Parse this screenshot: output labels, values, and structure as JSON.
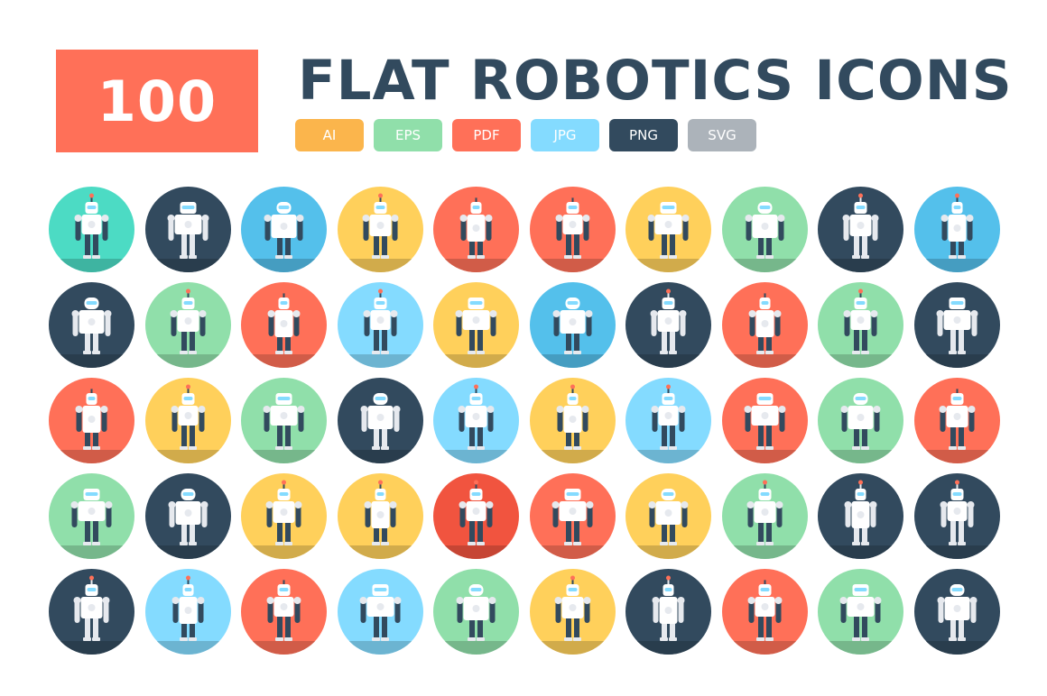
{
  "header": {
    "count": "100",
    "title": "FLAT ROBOTICS ICONS",
    "count_color": "#ff7058",
    "title_color": "#324a5e"
  },
  "formats": [
    {
      "label": "AI",
      "color": "#fbb54c"
    },
    {
      "label": "EPS",
      "color": "#90dfaa"
    },
    {
      "label": "PDF",
      "color": "#ff7058"
    },
    {
      "label": "JPG",
      "color": "#84dbff"
    },
    {
      "label": "PNG",
      "color": "#324a5e"
    },
    {
      "label": "SVG",
      "color": "#acb3ba"
    }
  ],
  "palette": {
    "teal": "#4cdbc4",
    "dark": "#324a5e",
    "blue": "#54c0eb",
    "yellow": "#ffd05b",
    "coral": "#ff7058",
    "green": "#90dfaa",
    "lightblue": "#84dbff",
    "red": "#f1543f"
  },
  "icon_rows": [
    [
      "teal",
      "dark",
      "blue",
      "yellow",
      "coral",
      "coral",
      "yellow",
      "green",
      "dark",
      "blue"
    ],
    [
      "dark",
      "green",
      "coral",
      "lightblue",
      "yellow",
      "blue",
      "dark",
      "coral",
      "green",
      "dark"
    ],
    [
      "coral",
      "yellow",
      "green",
      "dark",
      "lightblue",
      "yellow",
      "lightblue",
      "coral",
      "green",
      "coral"
    ],
    [
      "green",
      "dark",
      "yellow",
      "yellow",
      "red",
      "coral",
      "yellow",
      "green",
      "dark",
      "dark"
    ],
    [
      "dark",
      "lightblue",
      "coral",
      "lightblue",
      "green",
      "yellow",
      "dark",
      "coral",
      "green",
      "dark"
    ]
  ],
  "icon_subject": "robot-icon"
}
